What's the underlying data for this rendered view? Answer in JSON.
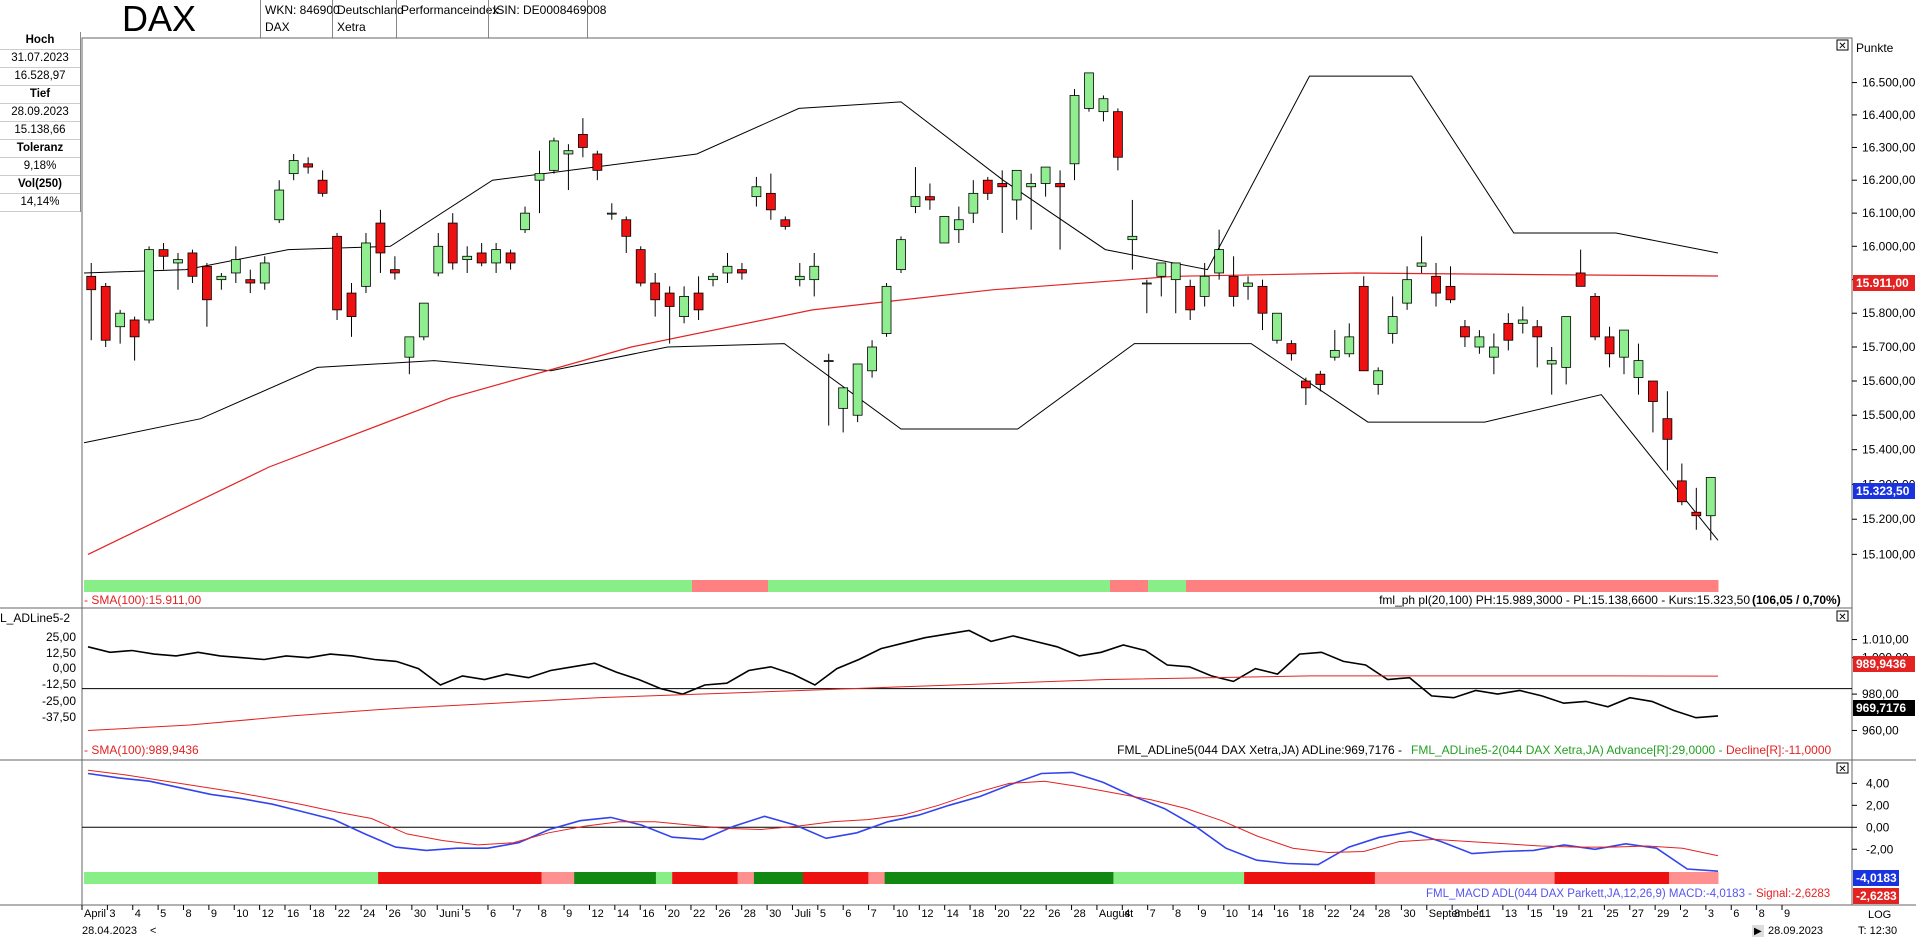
{
  "header": {
    "title": "DAX",
    "cells": [
      {
        "line1": "WKN: 846900",
        "line2": "DAX"
      },
      {
        "line1": "Deutschland",
        "line2": "Xetra"
      },
      {
        "line1": "Performanceindex",
        "line2": ""
      },
      {
        "line1": "ISIN: DE0008469008",
        "line2": ""
      }
    ]
  },
  "stats": {
    "hoch_label": "Hoch",
    "hoch_date": "31.07.2023",
    "hoch_value": "16.528,97",
    "tief_label": "Tief",
    "tief_date": "28.09.2023",
    "tief_value": "15.138,66",
    "toleranz_label": "Toleranz",
    "toleranz_value": "9,18%",
    "vol_label": "Vol(250)",
    "vol_value": "14,14%"
  },
  "price_panel": {
    "axis_unit": "Punkte",
    "y_ticks": [
      "16.500,00",
      "16.400,00",
      "16.300,00",
      "16.200,00",
      "16.100,00",
      "16.000,00",
      "15.900,00",
      "15.800,00",
      "15.700,00",
      "15.600,00",
      "15.500,00",
      "15.400,00",
      "15.300,00",
      "15.200,00",
      "15.100,00"
    ],
    "sma_marker": "15.911,00",
    "price_marker": "15.323,50",
    "sma_legend": "- SMA(100):15.911,00",
    "info_legend": "fml_ph pl(20,100) PH:15.989,3000 - PL:15.138,6600 - Kurs:15.323,50",
    "info_bold": "(106,05 / 0,70%)",
    "sma_color": "#e32222",
    "up_color": "#90ee90",
    "down_color": "#ee1111"
  },
  "adline_panel": {
    "title": "L_ADLine5-2",
    "left_ticks": [
      "25,00",
      "12,50",
      "0,00",
      "-12,50",
      "-25,00",
      "-37,50"
    ],
    "right_ticks": [
      "1.010,00",
      "1.000,00",
      "980,00",
      "960,00"
    ],
    "sma_marker": "989,9436",
    "adl_marker": "969,7176",
    "sma_legend": "- SMA(100):989,9436",
    "legend_black": "FML_ADLine5(044 DAX Xetra,JA) ADLine:969,7176 -",
    "legend_green": "FML_ADLine5-2(044 DAX Xetra,JA) Advance[R]:29,0000 -",
    "legend_red": "Decline[R]:-11,0000"
  },
  "macd_panel": {
    "right_ticks": [
      "4,00",
      "2,00",
      "0,00",
      "-2,00"
    ],
    "signal_marker": "-2,6283",
    "macd_marker": "-4,0183",
    "legend_blue": "FML_MACD ADL(044 DAX Parkett,JA,12,26,9) MACD:-4,0183 -",
    "legend_red": "Signal:-2,6283"
  },
  "x_axis": {
    "labels": [
      "April",
      "3",
      "4",
      "5",
      "8",
      "9",
      "10",
      "12",
      "16",
      "18",
      "22",
      "24",
      "26",
      "30",
      "Juni",
      "5",
      "6",
      "7",
      "8",
      "9",
      "12",
      "14",
      "16",
      "20",
      "22",
      "26",
      "28",
      "30",
      "Juli",
      "5",
      "6",
      "7",
      "10",
      "12",
      "14",
      "18",
      "20",
      "22",
      "26",
      "28",
      "August",
      "4",
      "7",
      "8",
      "9",
      "10",
      "14",
      "16",
      "18",
      "22",
      "24",
      "28",
      "30",
      "September",
      "8",
      "11",
      "13",
      "15",
      "19",
      "21",
      "25",
      "27",
      "29",
      "2",
      "3",
      "6",
      "8",
      "9"
    ],
    "start_date": "28.04.2023",
    "end_date": "28.09.2023",
    "scale_label": "LOG",
    "time_label": "T: 12:30"
  },
  "chart_data": [
    {
      "type": "candlestick",
      "title": "DAX",
      "y_unit": "Punkte",
      "ylim": [
        15050,
        16620
      ],
      "candles_ohlc": [
        [
          15910,
          15950,
          15720,
          15870
        ],
        [
          15880,
          15890,
          15700,
          15720
        ],
        [
          15760,
          15810,
          15710,
          15800
        ],
        [
          15780,
          15790,
          15660,
          15730
        ],
        [
          15780,
          16000,
          15770,
          15990
        ],
        [
          15990,
          16010,
          15930,
          15970
        ],
        [
          15950,
          15980,
          15870,
          15960
        ],
        [
          15980,
          15990,
          15890,
          15910
        ],
        [
          15940,
          15950,
          15760,
          15840
        ],
        [
          15900,
          15920,
          15870,
          15910
        ],
        [
          15920,
          16000,
          15890,
          15960
        ],
        [
          15900,
          15930,
          15860,
          15890
        ],
        [
          15890,
          15970,
          15870,
          15950
        ],
        [
          16080,
          16200,
          16070,
          16170
        ],
        [
          16220,
          16280,
          16200,
          16260
        ],
        [
          16250,
          16270,
          16220,
          16240
        ],
        [
          16200,
          16230,
          16150,
          16160
        ],
        [
          16030,
          16040,
          15780,
          15810
        ],
        [
          15860,
          15890,
          15730,
          15790
        ],
        [
          15880,
          16040,
          15860,
          16010
        ],
        [
          16070,
          16110,
          15920,
          15980
        ],
        [
          15930,
          15970,
          15900,
          15920
        ],
        [
          15670,
          15700,
          15620,
          15730
        ],
        [
          15730,
          15830,
          15720,
          15830
        ],
        [
          15920,
          16040,
          15910,
          16000
        ],
        [
          16070,
          16100,
          15930,
          15950
        ],
        [
          15960,
          16000,
          15920,
          15970
        ],
        [
          15980,
          16010,
          15940,
          15950
        ],
        [
          15950,
          16010,
          15920,
          15990
        ],
        [
          15980,
          15990,
          15930,
          15950
        ],
        [
          16050,
          16120,
          16040,
          16100
        ],
        [
          16200,
          16290,
          16100,
          16220
        ],
        [
          16230,
          16330,
          16220,
          16320
        ],
        [
          16280,
          16310,
          16170,
          16290
        ],
        [
          16340,
          16390,
          16270,
          16300
        ],
        [
          16280,
          16290,
          16200,
          16230
        ],
        [
          16100,
          16130,
          16080,
          16100
        ],
        [
          16080,
          16090,
          15980,
          16030
        ],
        [
          15990,
          16000,
          15880,
          15890
        ],
        [
          15890,
          15920,
          15790,
          15840
        ],
        [
          15860,
          15880,
          15710,
          15820
        ],
        [
          15790,
          15880,
          15770,
          15850
        ],
        [
          15860,
          15910,
          15780,
          15810
        ],
        [
          15900,
          15920,
          15880,
          15910
        ],
        [
          15920,
          15980,
          15890,
          15940
        ],
        [
          15930,
          15950,
          15900,
          15920
        ],
        [
          16150,
          16210,
          16120,
          16180
        ],
        [
          16160,
          16220,
          16080,
          16110
        ],
        [
          16080,
          16090,
          16050,
          16060
        ],
        [
          15900,
          15950,
          15880,
          15910
        ],
        [
          15900,
          15980,
          15850,
          15940
        ],
        [
          15660,
          15680,
          15470,
          15660
        ],
        [
          15520,
          15570,
          15450,
          15580
        ],
        [
          15500,
          15600,
          15480,
          15650
        ],
        [
          15630,
          15720,
          15610,
          15700
        ],
        [
          15740,
          15890,
          15730,
          15880
        ],
        [
          15930,
          16030,
          15920,
          16020
        ],
        [
          16120,
          16240,
          16100,
          16150
        ],
        [
          16150,
          16190,
          16110,
          16140
        ],
        [
          16010,
          16030,
          16040,
          16090
        ],
        [
          16050,
          16120,
          16010,
          16080
        ],
        [
          16100,
          16200,
          16070,
          16160
        ],
        [
          16200,
          16210,
          16140,
          16160
        ],
        [
          16190,
          16230,
          16040,
          16180
        ],
        [
          16140,
          16220,
          16080,
          16230
        ],
        [
          16180,
          16220,
          16050,
          16190
        ],
        [
          16190,
          16230,
          16150,
          16240
        ],
        [
          16190,
          16230,
          15990,
          16180
        ],
        [
          16250,
          16480,
          16200,
          16460
        ],
        [
          16420,
          16530,
          16410,
          16530
        ],
        [
          16410,
          16460,
          16380,
          16450
        ],
        [
          16410,
          16420,
          16230,
          16270
        ],
        [
          16020,
          16140,
          15930,
          16030
        ],
        [
          15890,
          15900,
          15800,
          15890
        ],
        [
          15910,
          15940,
          15850,
          15950
        ],
        [
          15900,
          15950,
          15800,
          15950
        ],
        [
          15880,
          15900,
          15780,
          15810
        ],
        [
          15850,
          15950,
          15820,
          15910
        ],
        [
          15920,
          16050,
          15900,
          15990
        ],
        [
          15910,
          15970,
          15820,
          15850
        ],
        [
          15880,
          15910,
          15840,
          15890
        ],
        [
          15880,
          15900,
          15750,
          15800
        ],
        [
          15720,
          15800,
          15710,
          15800
        ],
        [
          15710,
          15720,
          15660,
          15680
        ],
        [
          15600,
          15610,
          15530,
          15580
        ],
        [
          15620,
          15630,
          15570,
          15590
        ],
        [
          15670,
          15750,
          15660,
          15690
        ],
        [
          15680,
          15770,
          15670,
          15730
        ],
        [
          15880,
          15910,
          15640,
          15630
        ],
        [
          15590,
          15640,
          15560,
          15630
        ],
        [
          15740,
          15850,
          15710,
          15790
        ],
        [
          15830,
          15940,
          15810,
          15900
        ],
        [
          15940,
          16030,
          15920,
          15950
        ],
        [
          15910,
          15950,
          15820,
          15860
        ],
        [
          15880,
          15940,
          15830,
          15840
        ],
        [
          15760,
          15780,
          15700,
          15730
        ],
        [
          15700,
          15750,
          15680,
          15730
        ],
        [
          15670,
          15740,
          15620,
          15700
        ],
        [
          15770,
          15800,
          15690,
          15720
        ],
        [
          15770,
          15820,
          15740,
          15780
        ],
        [
          15760,
          15780,
          15640,
          15730
        ],
        [
          15650,
          15700,
          15560,
          15660
        ],
        [
          15640,
          15790,
          15590,
          15790
        ],
        [
          15920,
          15990,
          15880,
          15880
        ],
        [
          15850,
          15860,
          15720,
          15730
        ],
        [
          15730,
          15760,
          15640,
          15680
        ],
        [
          15670,
          15750,
          15620,
          15750
        ],
        [
          15610,
          15710,
          15560,
          15660
        ],
        [
          15600,
          15580,
          15450,
          15540
        ],
        [
          15490,
          15570,
          15340,
          15430
        ],
        [
          15310,
          15360,
          15240,
          15250
        ],
        [
          15220,
          15290,
          15170,
          15210
        ],
        [
          15210,
          15310,
          15140,
          15320
        ]
      ],
      "sma100": [
        15100,
        15350,
        15550,
        15700,
        15810,
        15870,
        15910,
        15920,
        15915,
        15911
      ],
      "upper_channel": [
        15920,
        15930,
        15990,
        16000,
        16200,
        16240,
        16280,
        16420,
        16440,
        16200,
        15990,
        15930,
        16520,
        16520,
        16040,
        16040,
        15980
      ],
      "lower_channel": [
        15420,
        15490,
        15640,
        15660,
        15630,
        15700,
        15710,
        15460,
        15460,
        15710,
        15710,
        15480,
        15480,
        15560,
        15140
      ],
      "trend_bar": [
        "green",
        "green",
        "green",
        "green",
        "green",
        "green",
        "green",
        "green",
        "green",
        "green",
        "green",
        "green",
        "green",
        "green",
        "green",
        "green",
        "red",
        "red",
        "green",
        "green",
        "green",
        "green",
        "green",
        "green",
        "green",
        "green",
        "green",
        "red",
        "green",
        "red",
        "red",
        "red",
        "red",
        "red",
        "red",
        "red",
        "red",
        "red",
        "red",
        "red",
        "red",
        "red",
        "red"
      ]
    },
    {
      "type": "line",
      "title": "L_ADLine5-2",
      "series": [
        {
          "name": "ADLine",
          "values": [
            1006,
            1003,
            1004,
            1002,
            1001,
            1003,
            1001,
            1000,
            999,
            1001,
            1000,
            1002,
            1001,
            999,
            998,
            994,
            985,
            990,
            988,
            991,
            989,
            993,
            995,
            997,
            992,
            988,
            983,
            980,
            985,
            986,
            993,
            995,
            991,
            985,
            994,
            999,
            1005,
            1008,
            1011,
            1013,
            1015,
            1009,
            1012,
            1009,
            1006,
            1001,
            1003,
            1007,
            1004,
            996,
            995,
            990,
            987,
            994,
            991,
            1002,
            1003,
            998,
            996,
            988,
            989,
            979,
            978,
            982,
            980,
            982,
            979,
            975,
            976,
            973,
            978,
            976,
            971,
            967,
            968
          ]
        },
        {
          "name": "SMA(100)",
          "values": [
            960,
            963,
            968,
            972,
            975,
            978,
            980,
            982,
            984,
            986,
            988,
            989,
            990,
            990,
            990,
            990,
            989.9
          ]
        }
      ],
      "ylim": [
        952,
        1018
      ]
    },
    {
      "type": "line",
      "title": "FML_MACD ADL",
      "series": [
        {
          "name": "MACD",
          "values": [
            4.9,
            4.5,
            4.2,
            3.6,
            3.0,
            2.6,
            2.1,
            1.4,
            0.7,
            -0.6,
            -1.8,
            -2.1,
            -1.9,
            -1.9,
            -1.4,
            -0.2,
            0.6,
            0.9,
            0.2,
            -0.9,
            -1.1,
            0.1,
            1.0,
            0.2,
            -1.0,
            -0.5,
            0.5,
            1.1,
            2.0,
            2.8,
            3.9,
            4.9,
            5.0,
            4.1,
            2.8,
            1.7,
            0.1,
            -1.9,
            -3.0,
            -3.3,
            -3.4,
            -1.8,
            -0.9,
            -0.4,
            -1.3,
            -2.4,
            -2.2,
            -2.1,
            -1.6,
            -2.0,
            -1.5,
            -1.9,
            -3.8,
            -4.0
          ]
        },
        {
          "name": "Signal",
          "values": [
            5.2,
            4.8,
            4.3,
            3.8,
            3.3,
            2.7,
            2.1,
            1.4,
            0.8,
            -0.6,
            -1.2,
            -1.6,
            -1.4,
            -0.5,
            0.1,
            0.5,
            0.5,
            0.2,
            -0.1,
            -0.2,
            0.1,
            0.5,
            0.7,
            1.1,
            2.0,
            3.1,
            4.0,
            4.2,
            3.7,
            3.1,
            2.5,
            1.7,
            0.6,
            -0.8,
            -1.9,
            -2.3,
            -2.2,
            -1.3,
            -1.1,
            -1.3,
            -1.5,
            -1.7,
            -1.8,
            -1.8,
            -1.7,
            -1.9,
            -2.6
          ]
        }
      ],
      "ylim": [
        -4.8,
        5.4
      ]
    }
  ]
}
